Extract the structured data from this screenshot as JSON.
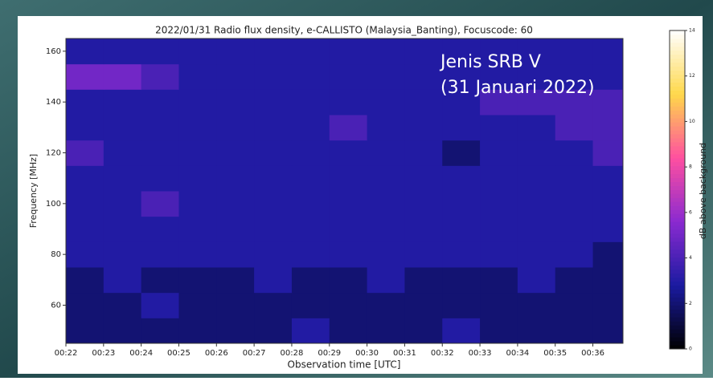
{
  "chart_data": {
    "type": "heatmap",
    "title": "2022/01/31  Radio flux density, e-CALLISTO (Malaysia_Banting), Focuscode: 60",
    "x_label": "Observation time [UTC]",
    "y_label": "Frequency [MHz]",
    "colorbar_label": "dB above background",
    "annotations": [
      "Jenis SRB V",
      "(31 Januari 2022)"
    ],
    "x_edges": [
      22,
      23,
      24,
      25,
      26,
      27,
      28,
      29,
      30,
      31,
      32,
      33,
      34,
      35,
      36,
      36.8
    ],
    "y_edges": [
      45,
      55,
      65,
      75,
      85,
      95,
      105,
      115,
      125,
      135,
      145,
      155,
      165
    ],
    "z": [
      [
        2,
        2,
        2,
        2,
        2,
        2,
        3,
        2,
        2,
        2,
        3,
        2,
        2,
        2,
        2
      ],
      [
        2,
        2,
        3,
        2,
        2,
        2,
        2,
        2,
        2,
        2,
        2,
        2,
        2,
        2,
        2
      ],
      [
        2,
        3,
        2,
        2,
        2,
        3,
        2,
        2,
        3,
        2,
        2,
        2,
        3,
        2,
        2
      ],
      [
        3,
        3,
        3,
        3,
        3,
        3,
        3,
        3,
        3,
        3,
        3,
        3,
        3,
        3,
        2
      ],
      [
        3,
        3,
        3,
        3,
        3,
        3,
        3,
        3,
        3,
        3,
        3,
        3,
        3,
        3,
        3
      ],
      [
        3,
        3,
        4,
        3,
        3,
        3,
        3,
        3,
        3,
        3,
        3,
        3,
        3,
        3,
        3
      ],
      [
        3,
        3,
        3,
        3,
        3,
        3,
        3,
        3,
        3,
        3,
        3,
        3,
        3,
        3,
        3
      ],
      [
        4,
        3,
        3,
        3,
        3,
        3,
        3,
        3,
        3,
        3,
        2,
        3,
        3,
        3,
        4
      ],
      [
        3,
        3,
        3,
        3,
        3,
        3,
        3,
        4,
        3,
        3,
        3,
        3,
        3,
        4,
        4
      ],
      [
        3,
        3,
        3,
        3,
        3,
        3,
        3,
        3,
        3,
        3,
        3,
        4,
        4,
        4,
        4
      ],
      [
        5,
        5,
        4,
        3,
        3,
        3,
        3,
        3,
        3,
        3,
        3,
        3,
        3,
        3,
        3
      ],
      [
        3,
        3,
        3,
        3,
        3,
        3,
        3,
        3,
        3,
        3,
        3,
        3,
        3,
        3,
        3
      ]
    ],
    "clim": [
      0,
      14
    ],
    "cticks": [
      0,
      2,
      4,
      6,
      8,
      10,
      12,
      14
    ],
    "colormap": [
      "#000000",
      "#1a1aa0",
      "#8a2ad0",
      "#ff4fa0",
      "#ffd84a",
      "#ffffff"
    ],
    "xlim": [
      22,
      36.8
    ],
    "ylim": [
      45,
      165
    ],
    "xticks": [
      {
        "value": 22,
        "label": "00:22"
      },
      {
        "value": 23,
        "label": "00:23"
      },
      {
        "value": 24,
        "label": "00:24"
      },
      {
        "value": 25,
        "label": "00:25"
      },
      {
        "value": 26,
        "label": "00:26"
      },
      {
        "value": 27,
        "label": "00:27"
      },
      {
        "value": 28,
        "label": "00:28"
      },
      {
        "value": 29,
        "label": "00:29"
      },
      {
        "value": 30,
        "label": "00:30"
      },
      {
        "value": 31,
        "label": "00:31"
      },
      {
        "value": 32,
        "label": "00:32"
      },
      {
        "value": 33,
        "label": "00:33"
      },
      {
        "value": 34,
        "label": "00:34"
      },
      {
        "value": 35,
        "label": "00:35"
      },
      {
        "value": 36,
        "label": "00:36"
      }
    ],
    "yticks": [
      60,
      80,
      100,
      120,
      140,
      160
    ]
  }
}
